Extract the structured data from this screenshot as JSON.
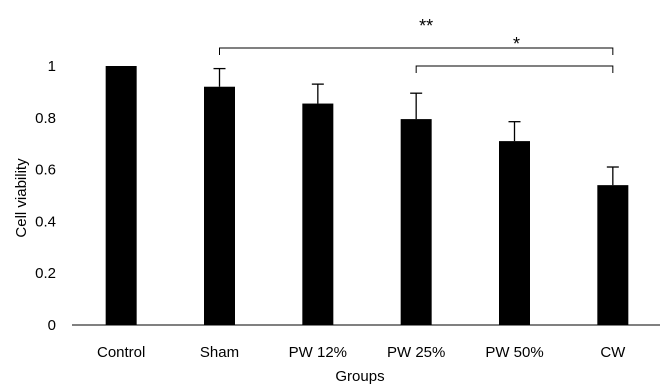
{
  "chart_data": {
    "type": "bar",
    "title": "",
    "xlabel": "Groups",
    "ylabel": "Cell viability",
    "ylim": [
      0,
      1
    ],
    "yticks": [
      "0",
      "0.2",
      "0.4",
      "0.6",
      "0.8",
      "1"
    ],
    "grid": false,
    "legend": "none",
    "bar_color": "#000000",
    "categories": [
      "Control",
      "Sham",
      "PW 12%",
      "PW 25%",
      "PW 50%",
      "CW"
    ],
    "values": [
      1.0,
      0.92,
      0.855,
      0.795,
      0.71,
      0.54
    ],
    "error_upper": [
      0,
      0.07,
      0.075,
      0.1,
      0.075,
      0.07
    ],
    "significance": [
      {
        "label": "**",
        "from": "Sham",
        "to": "CW"
      },
      {
        "label": "*",
        "from": "PW 25%",
        "to": "CW"
      }
    ]
  }
}
